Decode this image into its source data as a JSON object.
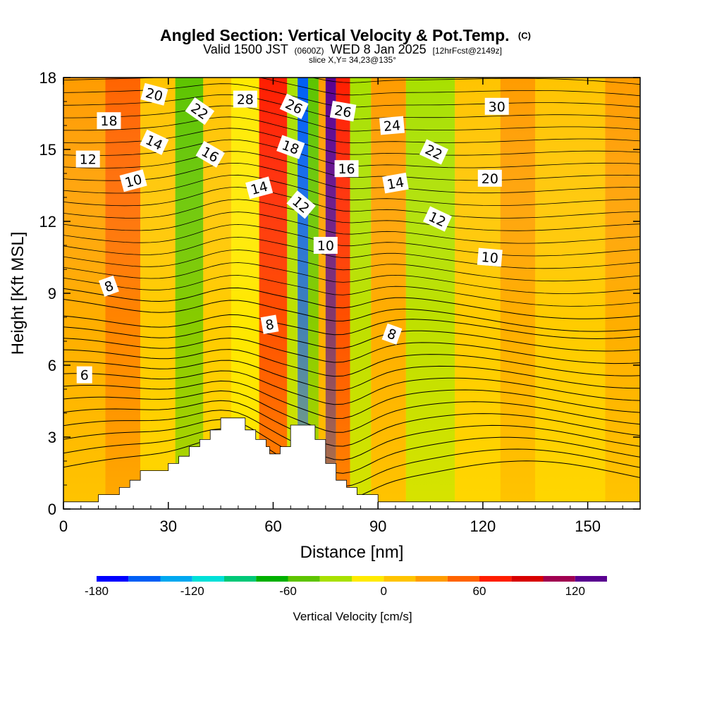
{
  "chart_data": {
    "type": "heatmap",
    "title": "Angled Section: Vertical Velocity & Pot.Temp.",
    "title_mark": "(C)",
    "subtitle_parts": [
      "Valid 1500 JST",
      "(0600Z)",
      "WED 8 Jan 2025",
      "[12hrFcst@2149z]"
    ],
    "subtitle3": "slice X,Y= 34,23@135°",
    "xlabel": "Distance [nm]",
    "ylabel": "Height [Kft MSL]",
    "xlim": [
      0,
      165
    ],
    "ylim": [
      0,
      18
    ],
    "xticks": [
      0,
      30,
      60,
      90,
      120,
      150
    ],
    "yticks": [
      0,
      3,
      6,
      9,
      12,
      15,
      18
    ],
    "colorbar": {
      "label": "Vertical Velocity [cm/s]",
      "min": -180,
      "max": 140,
      "step": 20,
      "tick_values": [
        -180,
        -120,
        -60,
        0,
        60,
        120
      ],
      "colors": [
        "#0000ff",
        "#005ff5",
        "#00a8f0",
        "#00e0d8",
        "#00c878",
        "#00b000",
        "#5ec400",
        "#a8e000",
        "#ffea00",
        "#ffc400",
        "#ff9c00",
        "#ff6400",
        "#ff1e00",
        "#d80000",
        "#a00050",
        "#5a0090"
      ]
    },
    "vertical_velocity_bands": [
      {
        "x_start": 0,
        "x_end": 12,
        "value": 30
      },
      {
        "x_start": 12,
        "x_end": 22,
        "value": 50
      },
      {
        "x_start": 22,
        "x_end": 32,
        "value": 0
      },
      {
        "x_start": 32,
        "x_end": 40,
        "value": -60
      },
      {
        "x_start": 40,
        "x_end": 48,
        "value": 0
      },
      {
        "x_start": 48,
        "x_end": 56,
        "value": -20
      },
      {
        "x_start": 56,
        "x_end": 64,
        "value": 60
      },
      {
        "x_start": 64,
        "x_end": 67,
        "value": -40
      },
      {
        "x_start": 67,
        "x_end": 70,
        "value": -160
      },
      {
        "x_start": 70,
        "x_end": 73,
        "value": -60
      },
      {
        "x_start": 73,
        "x_end": 75,
        "value": 20
      },
      {
        "x_start": 75,
        "x_end": 78,
        "value": 130
      },
      {
        "x_start": 78,
        "x_end": 82,
        "value": 60
      },
      {
        "x_start": 82,
        "x_end": 88,
        "value": -40
      },
      {
        "x_start": 88,
        "x_end": 98,
        "value": 20
      },
      {
        "x_start": 98,
        "x_end": 112,
        "value": -40
      },
      {
        "x_start": 112,
        "x_end": 125,
        "value": 0
      },
      {
        "x_start": 125,
        "x_end": 135,
        "value": 30
      },
      {
        "x_start": 135,
        "x_end": 155,
        "value": 10
      },
      {
        "x_start": 155,
        "x_end": 165,
        "value": 20
      }
    ],
    "terrain": [
      {
        "x": 0,
        "h": 0.3
      },
      {
        "x": 10,
        "h": 0.3
      },
      {
        "x": 10,
        "h": 0.6
      },
      {
        "x": 16,
        "h": 0.6
      },
      {
        "x": 16,
        "h": 0.9
      },
      {
        "x": 19,
        "h": 0.9
      },
      {
        "x": 19,
        "h": 1.2
      },
      {
        "x": 22,
        "h": 1.2
      },
      {
        "x": 22,
        "h": 1.6
      },
      {
        "x": 30,
        "h": 1.6
      },
      {
        "x": 30,
        "h": 1.9
      },
      {
        "x": 33,
        "h": 1.9
      },
      {
        "x": 33,
        "h": 2.2
      },
      {
        "x": 36,
        "h": 2.2
      },
      {
        "x": 36,
        "h": 2.6
      },
      {
        "x": 39,
        "h": 2.6
      },
      {
        "x": 39,
        "h": 2.9
      },
      {
        "x": 42,
        "h": 2.9
      },
      {
        "x": 42,
        "h": 3.3
      },
      {
        "x": 45,
        "h": 3.3
      },
      {
        "x": 45,
        "h": 3.8
      },
      {
        "x": 52,
        "h": 3.8
      },
      {
        "x": 52,
        "h": 3.3
      },
      {
        "x": 55,
        "h": 3.3
      },
      {
        "x": 55,
        "h": 2.9
      },
      {
        "x": 58,
        "h": 2.9
      },
      {
        "x": 58,
        "h": 2.6
      },
      {
        "x": 59,
        "h": 2.6
      },
      {
        "x": 59,
        "h": 2.3
      },
      {
        "x": 62,
        "h": 2.3
      },
      {
        "x": 62,
        "h": 2.6
      },
      {
        "x": 65,
        "h": 2.6
      },
      {
        "x": 65,
        "h": 3.5
      },
      {
        "x": 72,
        "h": 3.5
      },
      {
        "x": 72,
        "h": 2.9
      },
      {
        "x": 75,
        "h": 2.9
      },
      {
        "x": 75,
        "h": 1.9
      },
      {
        "x": 78,
        "h": 1.9
      },
      {
        "x": 78,
        "h": 1.2
      },
      {
        "x": 81,
        "h": 1.2
      },
      {
        "x": 81,
        "h": 0.9
      },
      {
        "x": 84,
        "h": 0.9
      },
      {
        "x": 84,
        "h": 0.6
      },
      {
        "x": 90,
        "h": 0.6
      },
      {
        "x": 90,
        "h": 0.3
      },
      {
        "x": 165,
        "h": 0.3
      }
    ],
    "potential_temperature_contours": [
      {
        "value": "6",
        "label_at": [
          6,
          5.6
        ],
        "label_angle": 0
      },
      {
        "value": "8",
        "label_at": [
          13,
          9.3
        ],
        "label_angle": -20
      },
      {
        "value": "8",
        "label_at": [
          59,
          7.7
        ],
        "label_angle": -10
      },
      {
        "value": "8",
        "label_at": [
          94,
          7.3
        ],
        "label_angle": 20
      },
      {
        "value": "10",
        "label_at": [
          20,
          13.7
        ],
        "label_angle": -15
      },
      {
        "value": "10",
        "label_at": [
          75,
          11.0
        ],
        "label_angle": 0
      },
      {
        "value": "10",
        "label_at": [
          122,
          10.5
        ],
        "label_angle": 5
      },
      {
        "value": "12",
        "label_at": [
          7,
          14.6
        ],
        "label_angle": 0
      },
      {
        "value": "12",
        "label_at": [
          68,
          12.7
        ],
        "label_angle": 40
      },
      {
        "value": "12",
        "label_at": [
          107,
          12.1
        ],
        "label_angle": 25
      },
      {
        "value": "14",
        "label_at": [
          26,
          15.3
        ],
        "label_angle": 25
      },
      {
        "value": "14",
        "label_at": [
          56,
          13.4
        ],
        "label_angle": -15
      },
      {
        "value": "14",
        "label_at": [
          95,
          13.6
        ],
        "label_angle": -10
      },
      {
        "value": "16",
        "label_at": [
          42,
          14.8
        ],
        "label_angle": 30
      },
      {
        "value": "16",
        "label_at": [
          81,
          14.2
        ],
        "label_angle": 0
      },
      {
        "value": "18",
        "label_at": [
          13,
          16.2
        ],
        "label_angle": 0
      },
      {
        "value": "18",
        "label_at": [
          65,
          15.1
        ],
        "label_angle": 20
      },
      {
        "value": "20",
        "label_at": [
          26,
          17.3
        ],
        "label_angle": 15
      },
      {
        "value": "20",
        "label_at": [
          122,
          13.8
        ],
        "label_angle": 0
      },
      {
        "value": "22",
        "label_at": [
          39,
          16.6
        ],
        "label_angle": 35
      },
      {
        "value": "22",
        "label_at": [
          106,
          14.9
        ],
        "label_angle": 25
      },
      {
        "value": "24",
        "label_at": [
          94,
          16.0
        ],
        "label_angle": -5
      },
      {
        "value": "26",
        "label_at": [
          66,
          16.8
        ],
        "label_angle": 25
      },
      {
        "value": "26",
        "label_at": [
          80,
          16.6
        ],
        "label_angle": 10
      },
      {
        "value": "28",
        "label_at": [
          52,
          17.1
        ],
        "label_angle": 0
      },
      {
        "value": "30",
        "label_at": [
          124,
          16.8
        ],
        "label_angle": 0
      }
    ]
  }
}
